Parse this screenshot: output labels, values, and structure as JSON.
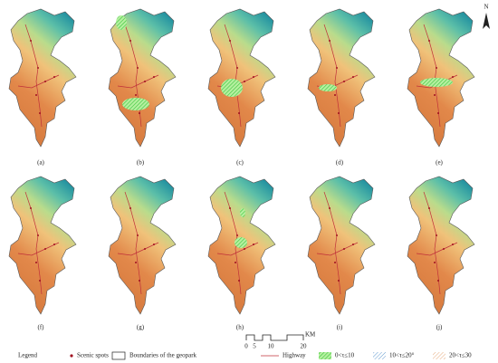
{
  "north": "N",
  "panels": [
    "(a)",
    "(b)",
    "(c)",
    "(d)",
    "(e)",
    "(f)",
    "(g)",
    "(h)",
    "(i)",
    "(j)"
  ],
  "scale_bar": {
    "ticks": [
      "0",
      "5",
      "10",
      "20"
    ],
    "unit": "KM"
  },
  "legend": {
    "title": "Legend",
    "items": [
      "Scenic spots",
      "Boundaries of the geopark",
      "Highway",
      "0<τ≤10",
      "10<τ≤20°",
      "20<τ≤30"
    ]
  }
}
